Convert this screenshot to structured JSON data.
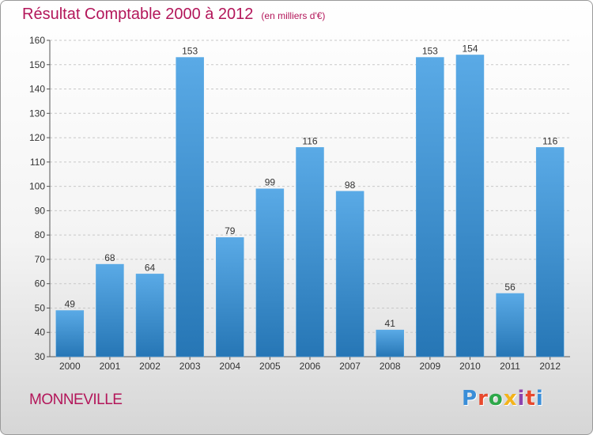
{
  "title": "Résultat Comptable 2000 à 2012",
  "title_unit": "(en milliers d'€)",
  "commune": "MONNEVILLE",
  "brand": "Proxiti",
  "brand_colors": [
    "#3a8ed8",
    "#e8492d",
    "#2ea84a",
    "#f4b31a",
    "#8e44ad",
    "#e8492d",
    "#3a8ed8"
  ],
  "colors": {
    "bar_top": "#5aaae6",
    "bar_bottom": "#2676b5",
    "title": "#b3165a"
  },
  "chart_data": {
    "type": "bar",
    "categories": [
      "2000",
      "2001",
      "2002",
      "2003",
      "2004",
      "2005",
      "2006",
      "2007",
      "2008",
      "2009",
      "2010",
      "2011",
      "2012"
    ],
    "values": [
      49,
      68,
      64,
      153,
      79,
      99,
      116,
      98,
      41,
      153,
      154,
      56,
      116
    ],
    "ylim": [
      30,
      160
    ],
    "yticks": [
      30,
      40,
      50,
      60,
      70,
      80,
      90,
      100,
      110,
      120,
      130,
      140,
      150,
      160
    ],
    "grid": true,
    "xlabel": "",
    "ylabel": ""
  }
}
